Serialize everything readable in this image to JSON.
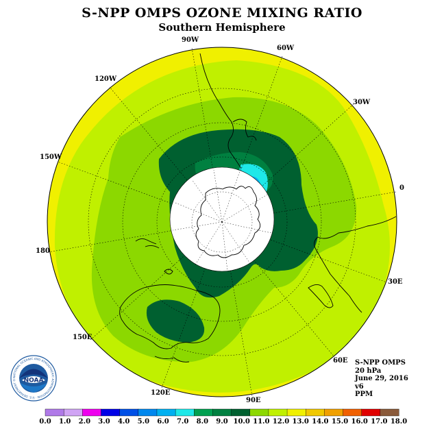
{
  "title": "S-NPP OMPS OZONE MIXING RATIO",
  "subtitle": "Southern Hemisphere",
  "longitude_labels": [
    "90W",
    "60W",
    "30W",
    "0",
    "30E",
    "60E",
    "90E",
    "120E",
    "150E",
    "180",
    "150W",
    "120W"
  ],
  "info": {
    "instrument": "S-NPP OMPS",
    "level": "20 hPa",
    "date": "June 29, 2016",
    "version": "v6",
    "units": "PPM"
  },
  "logo": {
    "text": "NOAA",
    "ring_text": "NATIONAL OCEANIC AND ATMOSPHERIC ADMINISTRATION · U.S. DEPARTMENT OF COMMERCE"
  },
  "colorbar": {
    "ticks": [
      "0.0",
      "1.0",
      "2.0",
      "3.0",
      "4.0",
      "5.0",
      "6.0",
      "7.0",
      "8.0",
      "9.0",
      "10.0",
      "11.0",
      "12.0",
      "13.0",
      "14.0",
      "15.0",
      "16.0",
      "17.0",
      "18.0"
    ],
    "colors": [
      "#b07ae8",
      "#d0a4f4",
      "#ee00ee",
      "#0000e6",
      "#0050e6",
      "#0088ee",
      "#00b0f0",
      "#1ee8e8",
      "#00a050",
      "#008040",
      "#006030",
      "#8cd800",
      "#c0f000",
      "#f0f000",
      "#f0c800",
      "#f0a000",
      "#f06000",
      "#e00000",
      "#8a5a3a"
    ]
  },
  "colors": {
    "c10_11": "#8cd800",
    "c11_12": "#c0f000",
    "c12_13": "#f0f000",
    "c9_10": "#006030",
    "c8_9": "#008040",
    "c7_8": "#1ee8e8"
  }
}
